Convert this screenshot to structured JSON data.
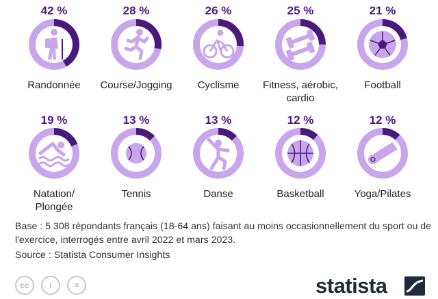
{
  "chart_data": {
    "type": "donut-grid",
    "categories": [
      "Randonnée",
      "Course/Jogging",
      "Cyclisme",
      "Fitness, aérobic, cardio",
      "Football",
      "Natation/ Plongée",
      "Tennis",
      "Danse",
      "Basketball",
      "Yoga/Pilates"
    ],
    "values": [
      42,
      28,
      26,
      25,
      21,
      19,
      13,
      13,
      12,
      12
    ],
    "value_labels": [
      "42 %",
      "28 %",
      "26 %",
      "25 %",
      "21 %",
      "19 %",
      "13 %",
      "13 %",
      "12 %",
      "12 %"
    ],
    "label_lines": [
      [
        "Randonnée"
      ],
      [
        "Course/Jogging"
      ],
      [
        "Cyclisme"
      ],
      [
        "Fitness, aérobic,",
        "cardio"
      ],
      [
        "Football"
      ],
      [
        "Natation/",
        "Plongée"
      ],
      [
        "Tennis"
      ],
      [
        "Danse"
      ],
      [
        "Basketball"
      ],
      [
        "Yoga/Pilates"
      ]
    ],
    "icons": [
      "hiker-icon",
      "runner-icon",
      "cyclist-icon",
      "dumbbell-icon",
      "soccer-ball-icon",
      "swimmer-icon",
      "tennis-ball-icon",
      "dancer-icon",
      "basketball-icon",
      "yoga-mat-icon"
    ],
    "ylim": [
      0,
      100
    ],
    "colors": {
      "filled": "#4a1a7a",
      "ring": "#c9a5ec",
      "icon": "#c9a5ec",
      "iconStroke": "#4a1a7a"
    }
  },
  "notes": {
    "base": "Base : 5 308 répondants français (18-64 ans) faisant au moins occasionnellement du sport ou de l'exercice, interrogés entre avril 2022 et mars 2023.",
    "source": "Source : Statista Consumer Insights"
  },
  "footer": {
    "cc": "cc",
    "by": "i",
    "nd": "=",
    "brand": "statista"
  }
}
